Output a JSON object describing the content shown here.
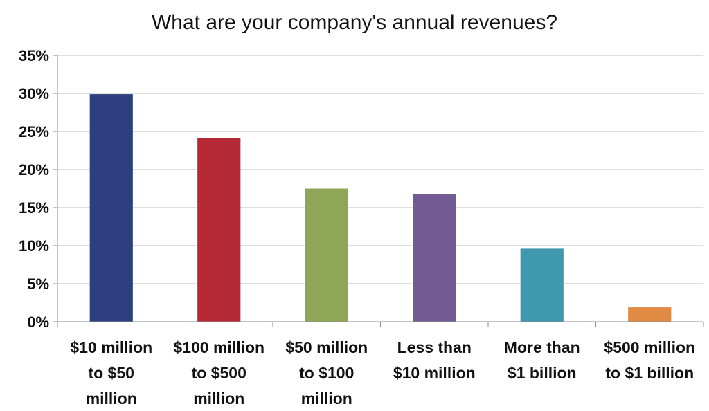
{
  "chart_data": {
    "type": "bar",
    "title": "What are your company's annual revenues?",
    "xlabel": "",
    "ylabel": "",
    "ylim": [
      0,
      35
    ],
    "y_ticks": [
      "0%",
      "5%",
      "10%",
      "15%",
      "20%",
      "25%",
      "30%",
      "35%"
    ],
    "grid": true,
    "legend": "none",
    "categories": [
      [
        "$10 million",
        "to $50",
        "million"
      ],
      [
        "$100 million",
        "to $500",
        "million"
      ],
      [
        "$50 million",
        "to $100",
        "million"
      ],
      [
        "Less than",
        "$10 million"
      ],
      [
        "More than",
        "$1 billion"
      ],
      [
        "$500 million",
        "to $1 billion"
      ]
    ],
    "values": [
      29.9,
      24.1,
      17.5,
      16.8,
      9.6,
      1.9
    ],
    "colors": [
      "#2e3f80",
      "#b52a36",
      "#8ea655",
      "#725a92",
      "#3f98ae",
      "#e08a44"
    ]
  }
}
